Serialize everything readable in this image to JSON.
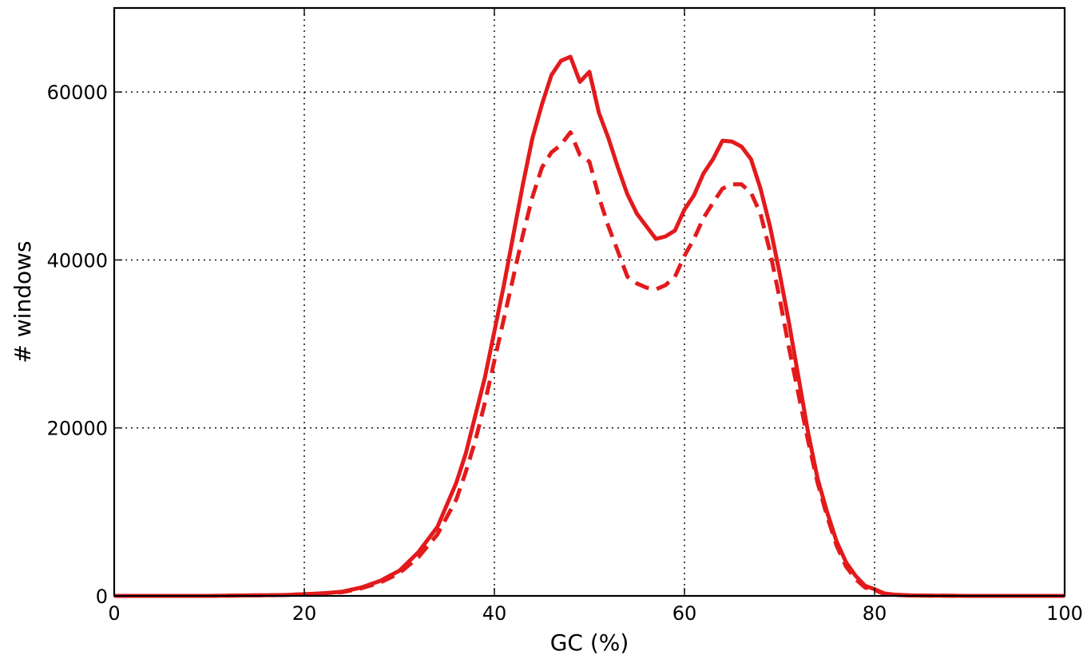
{
  "chart_data": {
    "type": "line",
    "title": "",
    "xlabel": "GC (%)",
    "ylabel": "# windows",
    "xlim": [
      0,
      100
    ],
    "ylim": [
      0,
      70000
    ],
    "xticks": [
      0,
      20,
      40,
      60,
      80,
      100
    ],
    "yticks": [
      0,
      20000,
      40000,
      60000
    ],
    "grid": true,
    "line_color": "#e31a1c",
    "series": [
      {
        "style": "solid",
        "x": [
          0,
          10,
          18,
          20,
          22,
          24,
          26,
          28,
          30,
          32,
          34,
          36,
          37,
          38,
          39,
          40,
          41,
          42,
          43,
          44,
          45,
          46,
          47,
          48,
          49,
          50,
          51,
          52,
          53,
          54,
          55,
          56,
          57,
          58,
          59,
          60,
          61,
          62,
          63,
          64,
          65,
          66,
          67,
          68,
          69,
          70,
          71,
          72,
          73,
          74,
          75,
          76,
          77,
          78,
          79,
          80,
          81,
          82,
          84,
          90,
          100
        ],
        "values": [
          0,
          0,
          100,
          200,
          300,
          500,
          1000,
          1800,
          3000,
          5200,
          8200,
          13500,
          17000,
          21500,
          26000,
          31500,
          37000,
          43000,
          49000,
          54500,
          58500,
          62000,
          63700,
          64200,
          61200,
          62400,
          57500,
          54500,
          51000,
          47800,
          45500,
          44000,
          42500,
          42800,
          43500,
          46000,
          47700,
          50300,
          52000,
          54200,
          54100,
          53500,
          52000,
          48500,
          44000,
          38500,
          32500,
          26000,
          19500,
          14000,
          10000,
          6500,
          4000,
          2400,
          1200,
          800,
          300,
          150,
          50,
          0,
          0
        ]
      },
      {
        "style": "dashed",
        "x": [
          0,
          10,
          18,
          20,
          22,
          24,
          26,
          28,
          30,
          32,
          34,
          36,
          37,
          38,
          39,
          40,
          41,
          42,
          43,
          44,
          45,
          46,
          47,
          48,
          49,
          50,
          51,
          52,
          53,
          54,
          55,
          56,
          57,
          58,
          59,
          60,
          61,
          62,
          63,
          64,
          65,
          66,
          67,
          68,
          69,
          70,
          71,
          72,
          73,
          74,
          75,
          76,
          77,
          78,
          79,
          80,
          81,
          82,
          84,
          90,
          100
        ],
        "values": [
          0,
          0,
          100,
          200,
          300,
          450,
          900,
          1600,
          2700,
          4600,
          7300,
          11500,
          14800,
          18500,
          23000,
          28000,
          33000,
          38000,
          43000,
          47500,
          51000,
          52800,
          53700,
          55200,
          52500,
          51700,
          47500,
          44000,
          41000,
          38000,
          37200,
          36700,
          36500,
          37000,
          38000,
          40500,
          42500,
          45000,
          46800,
          48500,
          49000,
          49000,
          48000,
          45500,
          41000,
          35500,
          29500,
          24000,
          18500,
          13500,
          9500,
          6000,
          3500,
          2000,
          1000,
          700,
          250,
          120,
          40,
          0,
          0
        ]
      }
    ]
  }
}
